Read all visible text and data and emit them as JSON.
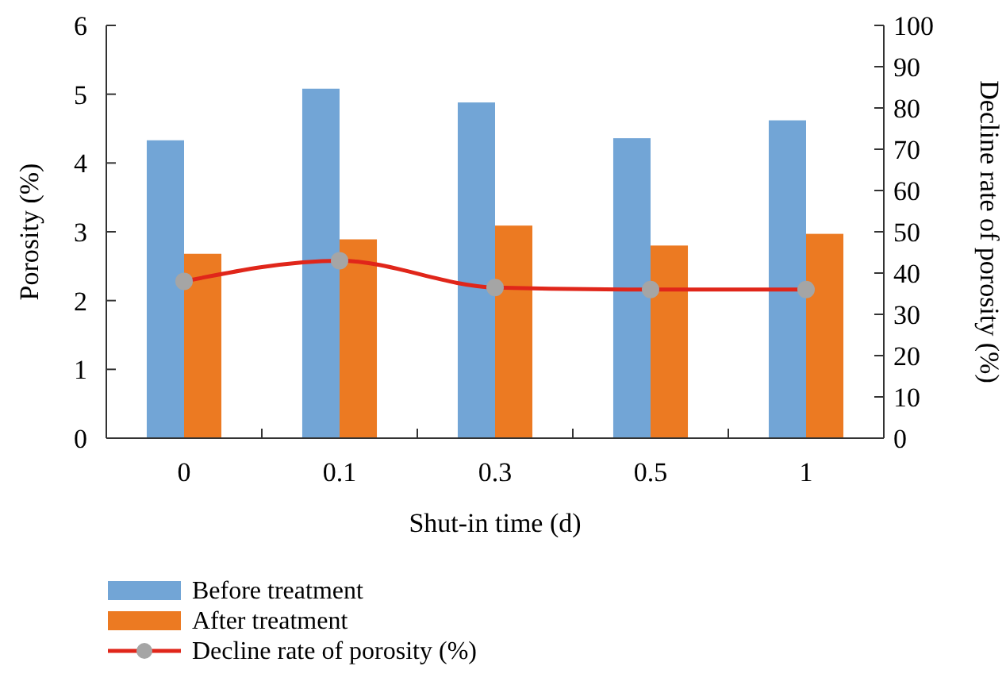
{
  "chart_data": {
    "type": "bar",
    "xlabel": "Shut-in time (d)",
    "ylabel": "Porosity (%)",
    "y2label": "Decline rate of porosity (%)",
    "categories": [
      "0",
      "0.1",
      "0.3",
      "0.5",
      "1"
    ],
    "series": [
      {
        "name": "Before treatment",
        "color": "#72a5d6",
        "values": [
          4.33,
          5.08,
          4.88,
          4.36,
          4.62
        ]
      },
      {
        "name": "After treatment",
        "color": "#ec7a22",
        "values": [
          2.68,
          2.89,
          3.09,
          2.8,
          2.97
        ]
      },
      {
        "name": "Decline rate of porosity (%)",
        "type": "line",
        "axis": "y2",
        "color": "#e0261a",
        "marker": "circle",
        "values": [
          38,
          43,
          36.5,
          36,
          36
        ]
      }
    ],
    "ylim": [
      0,
      6
    ],
    "yticks": [
      0,
      1,
      2,
      3,
      4,
      5,
      6
    ],
    "y2lim": [
      0,
      100
    ],
    "y2ticks": [
      0,
      10,
      20,
      30,
      40,
      50,
      60,
      70,
      80,
      90,
      100
    ],
    "grid": false,
    "legend": "bottom"
  }
}
